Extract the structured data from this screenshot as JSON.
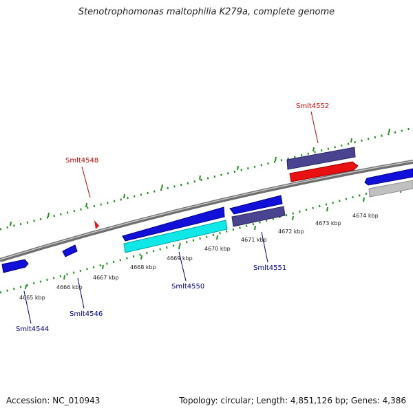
{
  "title": "Stenotrophomonas maltophilia K279a, complete genome",
  "footer": {
    "accession": "Accession: NC_010943",
    "summary": "Topology: circular; Length: 4,851,126 bp; Genes: 4,386"
  },
  "colors": {
    "backbone": "#8a8a8a",
    "tick": "#1f8f1f",
    "gene_blue": "#1010d8",
    "gene_slate": "#4a4490",
    "gene_red": "#e81010",
    "gene_cyan": "#10e8e8",
    "gene_grey": "#c0c0c0",
    "label_red": "#cc0000",
    "label_blue": "#00008b"
  },
  "scale": {
    "unit": "kbp",
    "ticks": [
      "4665 kbp",
      "4666 kbp",
      "4667 kbp",
      "4668 kbp",
      "4669 kbp",
      "4670 kbp",
      "4671 kbp",
      "4672 kbp",
      "4673 kbp",
      "4674 kbp"
    ]
  },
  "gene_labels": [
    {
      "name": "Smlt4548",
      "strand": "reverse"
    },
    {
      "name": "Smlt4552",
      "strand": "reverse"
    },
    {
      "name": "Smlt4544",
      "strand": "forward"
    },
    {
      "name": "Smlt4546",
      "strand": "forward"
    },
    {
      "name": "Smlt4550",
      "strand": "forward"
    },
    {
      "name": "Smlt4551",
      "strand": "forward"
    }
  ]
}
